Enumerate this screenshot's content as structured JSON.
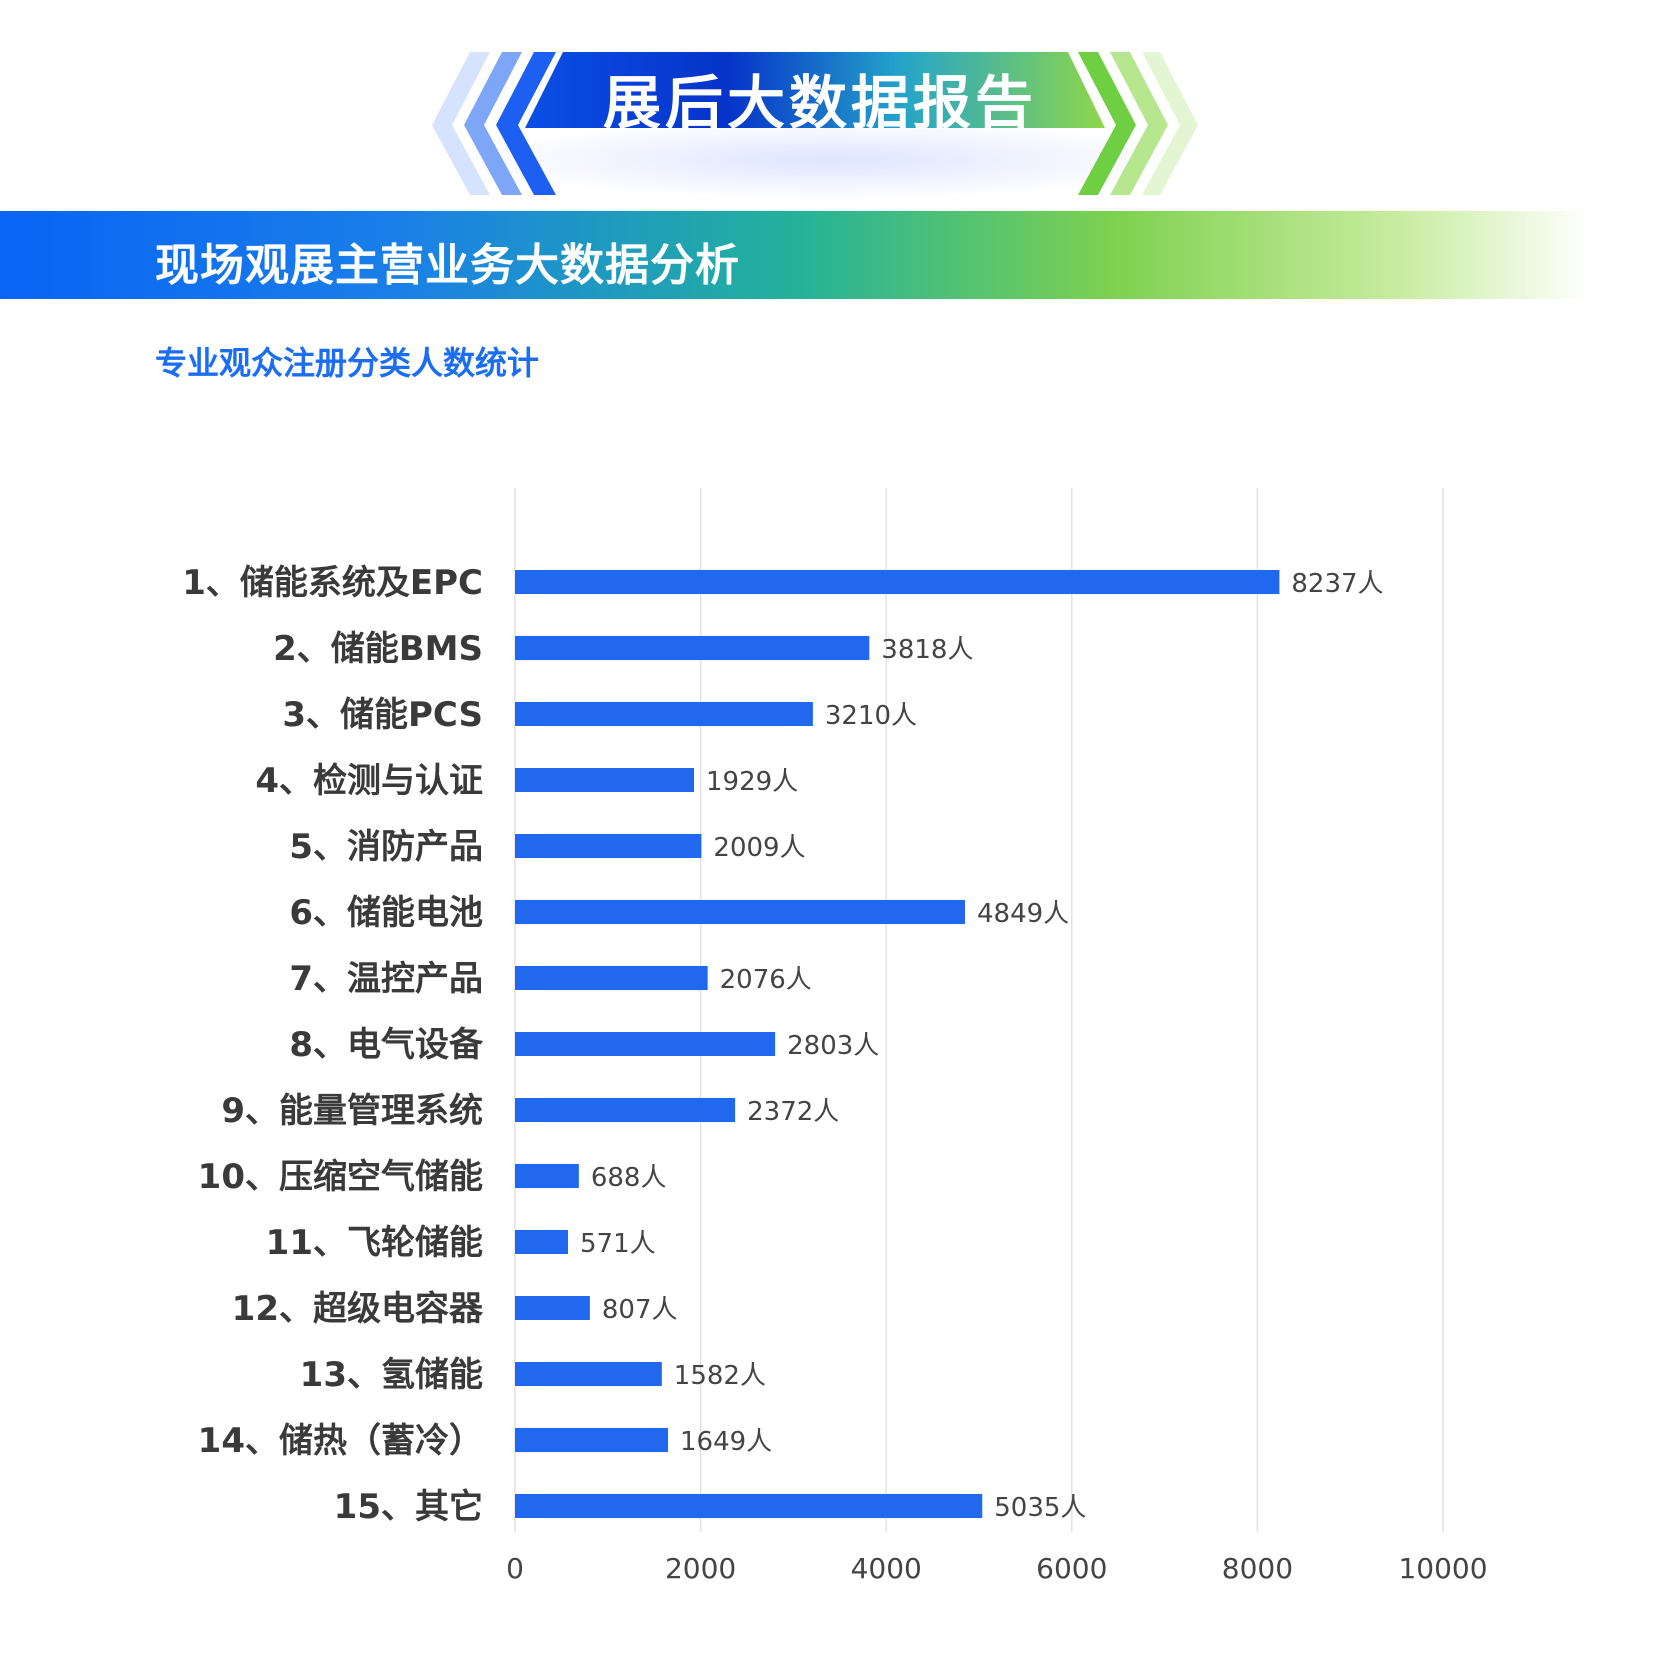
{
  "report_title": "展后大数据报告",
  "section_title": "现场观展主营业务大数据分析",
  "subtitle": "专业观众注册分类人数统计",
  "colors": {
    "bar": "#2168ee",
    "grid": "#e2e2e2",
    "accent": "#1b6ef2"
  },
  "chart_data": {
    "type": "bar",
    "orientation": "horizontal",
    "categories": [
      "1、储能系统及EPC",
      "2、储能BMS",
      "3、储能PCS",
      "4、检测与认证",
      "5、消防产品",
      "6、储能电池",
      "7、温控产品",
      "8、电气设备",
      "9、能量管理系统",
      "10、压缩空气储能",
      "11、飞轮储能",
      "12、超级电容器",
      "13、氢储能",
      "14、储热（蓄冷）",
      "15、其它"
    ],
    "values": [
      8237,
      3818,
      3210,
      1929,
      2009,
      4849,
      2076,
      2803,
      2372,
      688,
      571,
      807,
      1582,
      1649,
      5035
    ],
    "value_suffix": "人",
    "xlim": [
      0,
      10000
    ],
    "xticks": [
      0,
      2000,
      4000,
      6000,
      8000,
      10000
    ],
    "grid": true,
    "legend": "none"
  }
}
